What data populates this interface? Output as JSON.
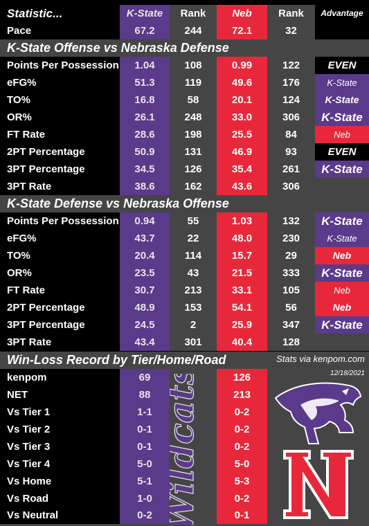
{
  "header": {
    "statistic": "Statistic...",
    "kstate": "K-State",
    "rank1": "Rank",
    "neb": "Neb",
    "rank2": "Rank",
    "advantage": "Advantage"
  },
  "pace": {
    "label": "Pace",
    "k": "67.2",
    "kr": "244",
    "n": "72.1",
    "nr": "32",
    "adv": ""
  },
  "section1": {
    "title": "K-State Offense vs Nebraska Defense",
    "rows": [
      {
        "label": "Points Per Possession",
        "k": "1.04",
        "kr": "108",
        "n": "0.99",
        "nr": "122",
        "adv": "EVEN",
        "advType": "even"
      },
      {
        "label": "eFG%",
        "k": "51.3",
        "kr": "119",
        "n": "49.6",
        "nr": "176",
        "adv": "K-State",
        "advType": "k-state"
      },
      {
        "label": "TO%",
        "k": "16.8",
        "kr": "58",
        "n": "20.1",
        "nr": "124",
        "adv": "K-State",
        "advType": "k-state"
      },
      {
        "label": "OR%",
        "k": "26.1",
        "kr": "248",
        "n": "33.0",
        "nr": "306",
        "adv": "K-State",
        "advType": "k-state"
      },
      {
        "label": "FT Rate",
        "k": "28.6",
        "kr": "198",
        "n": "25.5",
        "nr": "84",
        "adv": "Neb",
        "advType": "neb"
      },
      {
        "label": "2PT Percentage",
        "k": "50.9",
        "kr": "131",
        "n": "46.9",
        "nr": "93",
        "adv": "EVEN",
        "advType": "even"
      },
      {
        "label": "3PT Percentage",
        "k": "34.5",
        "kr": "126",
        "n": "35.4",
        "nr": "261",
        "adv": "K-State",
        "advType": "k-state"
      },
      {
        "label": "3PT Rate",
        "k": "38.6",
        "kr": "162",
        "n": "43.6",
        "nr": "306",
        "adv": "",
        "advType": "empty"
      }
    ]
  },
  "section2": {
    "title": "K-State Defense vs Nebraska Offense",
    "rows": [
      {
        "label": "Points Per Possession",
        "k": "0.94",
        "kr": "55",
        "n": "1.03",
        "nr": "132",
        "adv": "K-State",
        "advType": "k-state"
      },
      {
        "label": "eFG%",
        "k": "43.7",
        "kr": "22",
        "n": "48.0",
        "nr": "230",
        "adv": "K-State",
        "advType": "k-state"
      },
      {
        "label": "TO%",
        "k": "20.4",
        "kr": "114",
        "n": "15.7",
        "nr": "29",
        "adv": "Neb",
        "advType": "neb"
      },
      {
        "label": "OR%",
        "k": "23.5",
        "kr": "43",
        "n": "21.5",
        "nr": "333",
        "adv": "K-State",
        "advType": "k-state"
      },
      {
        "label": "FT Rate",
        "k": "30.7",
        "kr": "213",
        "n": "33.1",
        "nr": "105",
        "adv": "Neb",
        "advType": "neb"
      },
      {
        "label": "2PT Percentage",
        "k": "48.9",
        "kr": "153",
        "n": "54.1",
        "nr": "56",
        "adv": "Neb",
        "advType": "neb"
      },
      {
        "label": "3PT Percentage",
        "k": "24.5",
        "kr": "2",
        "n": "25.9",
        "nr": "347",
        "adv": "K-State",
        "advType": "k-state"
      },
      {
        "label": "3PT Rate",
        "k": "43.4",
        "kr": "301",
        "n": "40.4",
        "nr": "128",
        "adv": "",
        "advType": "empty"
      }
    ]
  },
  "winloss": {
    "title": "Win-Loss Record by Tier/Home/Road",
    "source": "Stats via kenpom.com",
    "date": "12/18/2021",
    "wordmark": "Wildcats",
    "rows": [
      {
        "label": "kenpom",
        "k": "69",
        "n": "126"
      },
      {
        "label": "NET",
        "k": "88",
        "n": "213"
      },
      {
        "label": "Vs Tier 1",
        "k": "1-1",
        "n": "0-2"
      },
      {
        "label": "Vs Tier 2",
        "k": "0-1",
        "n": "0-2"
      },
      {
        "label": "Vs Tier 3",
        "k": "0-1",
        "n": "0-2"
      },
      {
        "label": "Vs Tier 4",
        "k": "5-0",
        "n": "5-0"
      },
      {
        "label": "Vs Home",
        "k": "5-1",
        "n": "5-3"
      },
      {
        "label": "Vs Road",
        "k": "1-0",
        "n": "0-2"
      },
      {
        "label": "Vs Neutral",
        "k": "0-2",
        "n": "0-1"
      }
    ]
  },
  "colors": {
    "kstate": "#5a3a8a",
    "neb": "#e8283a",
    "rank": "#454545"
  },
  "icons": {
    "kstate_logo": "powercat-logo",
    "neb_logo": "nebraska-n-logo"
  }
}
